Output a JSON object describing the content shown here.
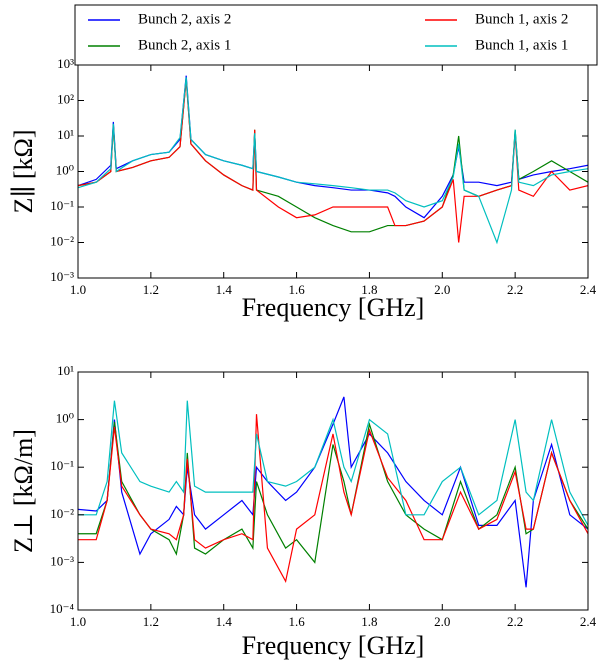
{
  "chart_data": [
    {
      "type": "line",
      "log_y": true,
      "ylabel": "Z∥ [kΩ]",
      "xlabel": "Frequency [GHz]",
      "legend": "upper center",
      "xlim": [
        1.0,
        2.4
      ],
      "xticks": [
        {
          "value": 1.0,
          "label": "1.0"
        },
        1.2,
        1.4,
        1.6,
        1.8,
        {
          "value": 2.0,
          "label": "2.0"
        },
        2.2,
        2.4
      ],
      "ylim": [
        0.001,
        1000
      ],
      "yticks": [
        {
          "value": 0.001,
          "label": "10⁻³"
        },
        {
          "value": 0.01,
          "label": "10⁻²"
        },
        {
          "value": 0.1,
          "label": "10⁻¹"
        },
        {
          "value": 1,
          "label": "10⁰"
        },
        {
          "value": 10,
          "label": "10¹"
        },
        {
          "value": 100,
          "label": "10²"
        },
        {
          "value": 1000,
          "label": "10³"
        }
      ],
      "x": [
        1.0,
        1.05,
        1.09,
        1.097,
        1.105,
        1.15,
        1.2,
        1.25,
        1.28,
        1.297,
        1.31,
        1.35,
        1.4,
        1.45,
        1.48,
        1.485,
        1.49,
        1.55,
        1.6,
        1.65,
        1.7,
        1.75,
        1.8,
        1.85,
        1.87,
        1.9,
        1.95,
        2.0,
        2.03,
        2.045,
        2.06,
        2.1,
        2.15,
        2.19,
        2.2,
        2.21,
        2.25,
        2.3,
        2.35,
        2.4
      ],
      "series": [
        {
          "name": "Bunch 2, axis 2",
          "color": "#0000ff",
          "values": [
            0.4,
            0.6,
            1.5,
            25,
            1.2,
            2,
            3,
            3.5,
            8,
            500,
            8,
            3,
            2,
            1.5,
            1.2,
            12,
            1,
            0.7,
            0.5,
            0.4,
            0.35,
            0.3,
            0.3,
            0.25,
            0.2,
            0.1,
            0.05,
            0.2,
            0.8,
            5,
            0.5,
            0.5,
            0.4,
            0.5,
            12,
            0.6,
            0.8,
            1,
            1.2,
            1.5
          ]
        },
        {
          "name": "Bunch 2, axis 1",
          "color": "#008000",
          "values": [
            0.4,
            0.5,
            1,
            20,
            1,
            1.3,
            2,
            2.5,
            5,
            400,
            6,
            2,
            0.8,
            0.4,
            0.3,
            15,
            0.3,
            0.2,
            0.1,
            0.05,
            0.03,
            0.02,
            0.02,
            0.03,
            0.03,
            0.03,
            0.04,
            0.1,
            0.8,
            10,
            0.3,
            0.2,
            0.3,
            0.4,
            15,
            0.6,
            1,
            2,
            1,
            0.5
          ]
        },
        {
          "name": "Bunch 1, axis 2",
          "color": "#ff0000",
          "values": [
            0.4,
            0.5,
            1,
            20,
            1,
            1.3,
            2,
            2.5,
            5,
            400,
            6,
            2,
            0.8,
            0.4,
            0.3,
            15,
            0.3,
            0.1,
            0.05,
            0.06,
            0.1,
            0.1,
            0.1,
            0.1,
            0.03,
            0.03,
            0.04,
            0.1,
            0.6,
            0.01,
            0.2,
            0.2,
            0.3,
            0.4,
            12,
            0.3,
            0.2,
            1,
            0.3,
            0.4
          ]
        },
        {
          "name": "Bunch 1, axis 1",
          "color": "#00bfbf",
          "values": [
            0.35,
            0.5,
            1.2,
            22,
            1,
            2,
            3,
            3.5,
            9,
            450,
            8,
            3,
            2,
            1.5,
            1.2,
            12,
            1,
            0.7,
            0.5,
            0.45,
            0.4,
            0.35,
            0.3,
            0.3,
            0.25,
            0.15,
            0.1,
            0.15,
            0.7,
            6,
            0.3,
            0.2,
            0.01,
            0.3,
            15,
            0.5,
            0.4,
            0.8,
            1,
            1.2
          ]
        }
      ]
    },
    {
      "type": "line",
      "log_y": true,
      "ylabel": "Z⊥ [kΩ/m]",
      "xlabel": "Frequency [GHz]",
      "xlim": [
        1.0,
        2.4
      ],
      "xticks": [
        {
          "value": 1.0,
          "label": "1.0"
        },
        1.2,
        1.4,
        1.6,
        1.8,
        {
          "value": 2.0,
          "label": "2.0"
        },
        2.2,
        2.4
      ],
      "ylim": [
        0.0001,
        10
      ],
      "yticks": [
        {
          "value": 0.0001,
          "label": "10⁻⁴"
        },
        {
          "value": 0.001,
          "label": "10⁻³"
        },
        {
          "value": 0.01,
          "label": "10⁻²"
        },
        {
          "value": 0.1,
          "label": "10⁻¹"
        },
        {
          "value": 1,
          "label": "10⁰"
        },
        {
          "value": 10,
          "label": "10¹"
        }
      ],
      "x": [
        1.0,
        1.05,
        1.08,
        1.1,
        1.12,
        1.17,
        1.2,
        1.25,
        1.27,
        1.29,
        1.3,
        1.32,
        1.35,
        1.4,
        1.45,
        1.48,
        1.49,
        1.52,
        1.57,
        1.6,
        1.65,
        1.7,
        1.73,
        1.75,
        1.8,
        1.85,
        1.9,
        1.95,
        2.0,
        2.05,
        2.1,
        2.15,
        2.2,
        2.23,
        2.25,
        2.3,
        2.35,
        2.4
      ],
      "series": [
        {
          "color": "#0000ff",
          "values": [
            0.013,
            0.012,
            0.02,
            1,
            0.03,
            0.0015,
            0.004,
            0.008,
            0.015,
            0.01,
            0.1,
            0.01,
            0.005,
            0.01,
            0.02,
            0.01,
            0.1,
            0.05,
            0.02,
            0.03,
            0.1,
            0.8,
            3,
            0.1,
            0.5,
            0.2,
            0.05,
            0.02,
            0.01,
            0.1,
            0.006,
            0.006,
            0.02,
            0.0003,
            0.02,
            0.3,
            0.01,
            0.005
          ]
        },
        {
          "color": "#008000",
          "values": [
            0.004,
            0.004,
            0.02,
            0.9,
            0.05,
            0.01,
            0.005,
            0.003,
            0.0015,
            0.01,
            0.2,
            0.002,
            0.0015,
            0.003,
            0.005,
            0.002,
            0.05,
            0.01,
            0.002,
            0.003,
            0.001,
            0.3,
            0.05,
            0.01,
            0.8,
            0.05,
            0.01,
            0.005,
            0.003,
            0.05,
            0.005,
            0.01,
            0.1,
            0.004,
            0.005,
            0.2,
            0.02,
            0.005
          ]
        },
        {
          "color": "#ff0000",
          "values": [
            0.003,
            0.003,
            0.02,
            0.7,
            0.04,
            0.01,
            0.005,
            0.004,
            0.003,
            0.01,
            0.15,
            0.003,
            0.002,
            0.003,
            0.004,
            0.003,
            1.3,
            0.002,
            0.0004,
            0.005,
            0.01,
            0.5,
            0.03,
            0.01,
            0.6,
            0.06,
            0.02,
            0.003,
            0.003,
            0.03,
            0.005,
            0.008,
            0.08,
            0.005,
            0.005,
            0.2,
            0.02,
            0.004
          ]
        },
        {
          "color": "#00bfbf",
          "values": [
            0.01,
            0.01,
            0.05,
            2.5,
            0.2,
            0.05,
            0.04,
            0.03,
            0.05,
            0.03,
            2.5,
            0.04,
            0.03,
            0.03,
            0.03,
            0.03,
            0.5,
            0.05,
            0.04,
            0.05,
            0.1,
            1,
            0.1,
            0.05,
            1,
            0.5,
            0.01,
            0.01,
            0.05,
            0.1,
            0.01,
            0.02,
            1,
            0.03,
            0.02,
            1,
            0.03,
            0.006
          ]
        }
      ]
    }
  ]
}
